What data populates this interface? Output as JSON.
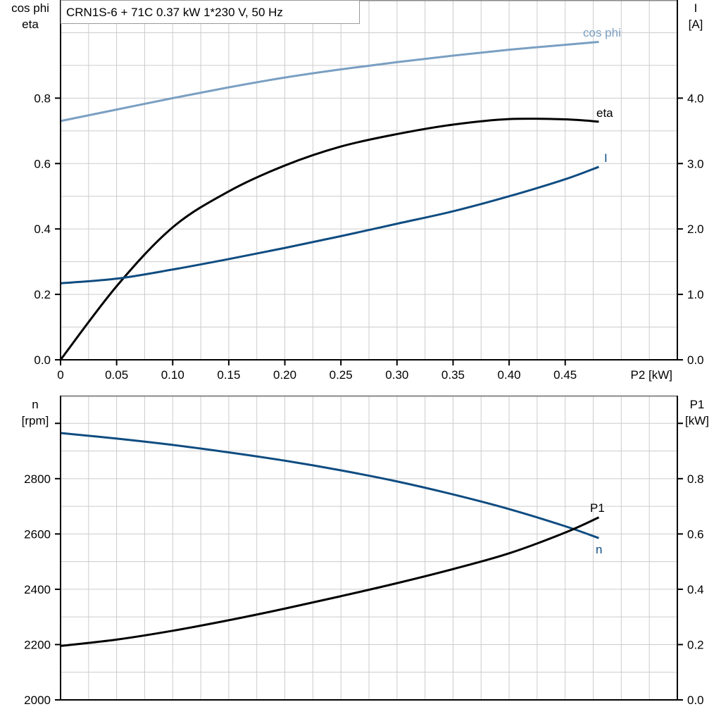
{
  "title": "CRN1S-6 + 71C   0.37 kW   1*230 V, 50 Hz",
  "colors": {
    "cos_phi": "#7a9fc2",
    "eta": "#000000",
    "I": "#0f4c81",
    "n": "#0f4c81",
    "P1": "#000000",
    "grid": "#cccccc"
  },
  "chart_data": [
    {
      "type": "line",
      "xlabel": "P2 [kW]",
      "ylabel_left": [
        "cos phi",
        "eta"
      ],
      "ylabel_right": [
        "I",
        "[A]"
      ],
      "xlim": [
        0,
        0.55
      ],
      "ylim_left": [
        0,
        1.1
      ],
      "ylim_right": [
        0,
        5.5
      ],
      "x_ticks": [
        "0",
        "0.05",
        "0.10",
        "0.15",
        "0.20",
        "0.25",
        "0.30",
        "0.35",
        "0.40",
        "0.45"
      ],
      "y_left_ticks": [
        "0.0",
        "0.2",
        "0.4",
        "0.6",
        "0.8"
      ],
      "y_right_ticks": [
        "0.0",
        "1.0",
        "2.0",
        "3.0",
        "4.0"
      ],
      "grid": true,
      "series": [
        {
          "name": "cos phi",
          "axis": "left",
          "x": [
            0,
            0.05,
            0.1,
            0.15,
            0.2,
            0.25,
            0.3,
            0.35,
            0.4,
            0.45,
            0.48
          ],
          "y": [
            0.73,
            0.765,
            0.8,
            0.833,
            0.863,
            0.888,
            0.91,
            0.93,
            0.948,
            0.963,
            0.972
          ]
        },
        {
          "name": "eta",
          "axis": "left",
          "x": [
            0,
            0.05,
            0.1,
            0.15,
            0.2,
            0.25,
            0.3,
            0.35,
            0.4,
            0.45,
            0.48
          ],
          "y": [
            0,
            0.225,
            0.405,
            0.515,
            0.594,
            0.652,
            0.69,
            0.719,
            0.736,
            0.735,
            0.728
          ]
        },
        {
          "name": "I",
          "axis": "right",
          "x": [
            0,
            0.05,
            0.1,
            0.15,
            0.2,
            0.25,
            0.3,
            0.35,
            0.4,
            0.45,
            0.48
          ],
          "y": [
            1.17,
            1.24,
            1.38,
            1.54,
            1.71,
            1.89,
            2.08,
            2.27,
            2.5,
            2.76,
            2.95
          ]
        }
      ]
    },
    {
      "type": "line",
      "ylabel_left": [
        "n",
        "[rpm]"
      ],
      "ylabel_right": [
        "P1",
        "[kW]"
      ],
      "xlim": [
        0,
        0.55
      ],
      "ylim_left": [
        2000,
        3100
      ],
      "ylim_right": [
        0,
        1.1
      ],
      "y_left_ticks": [
        "2000",
        "2200",
        "2400",
        "2600",
        "2800",
        ""
      ],
      "y_right_ticks": [
        "0.0",
        "0.2",
        "0.4",
        "0.6",
        "0.8",
        ""
      ],
      "grid": true,
      "series": [
        {
          "name": "n",
          "axis": "left",
          "x": [
            0,
            0.05,
            0.1,
            0.15,
            0.2,
            0.25,
            0.3,
            0.35,
            0.4,
            0.45,
            0.48
          ],
          "y": [
            2965,
            2945,
            2922,
            2895,
            2865,
            2830,
            2790,
            2743,
            2690,
            2628,
            2585
          ]
        },
        {
          "name": "P1",
          "axis": "right",
          "x": [
            0,
            0.05,
            0.1,
            0.15,
            0.2,
            0.25,
            0.3,
            0.35,
            0.4,
            0.45,
            0.48
          ],
          "y": [
            0.195,
            0.218,
            0.25,
            0.288,
            0.33,
            0.375,
            0.422,
            0.473,
            0.53,
            0.605,
            0.66
          ]
        }
      ]
    }
  ]
}
